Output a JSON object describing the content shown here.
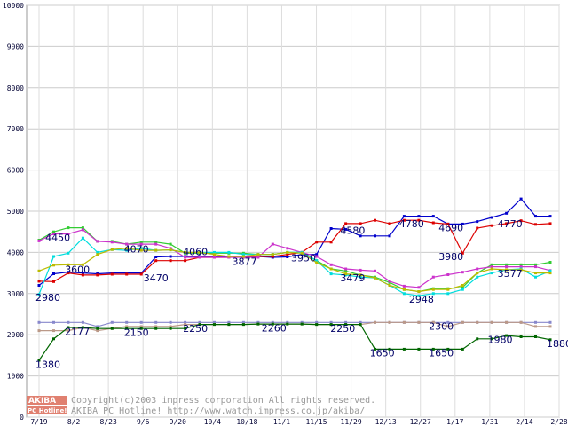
{
  "chart_data": {
    "type": "line",
    "title": "",
    "xlabel": "",
    "ylabel": "",
    "ylim": [
      0,
      10000
    ],
    "yticks": [
      0,
      1000,
      2000,
      3000,
      4000,
      5000,
      6000,
      7000,
      8000,
      9000,
      10000
    ],
    "xticks": [
      "7/19",
      "8/2",
      "8/23",
      "9/6",
      "9/20",
      "10/4",
      "10/18",
      "11/1",
      "11/15",
      "11/29",
      "12/13",
      "12/27",
      "1/17",
      "1/31",
      "2/14",
      "2/28"
    ],
    "grid": true,
    "legend": "none",
    "n_points": 36,
    "series": [
      {
        "color": "#0000cc",
        "values": [
          3200,
          3480,
          3520,
          3500,
          3480,
          3500,
          3500,
          3500,
          3890,
          3900,
          3900,
          3900,
          3900,
          3900,
          3900,
          3900,
          3880,
          3890,
          3950,
          3950,
          4580,
          4560,
          4400,
          4400,
          4400,
          4880,
          4880,
          4880,
          4690,
          4690,
          4750,
          4850,
          4950,
          5300,
          4880,
          4880
        ]
      },
      {
        "color": "#dd0000",
        "values": [
          3300,
          3290,
          3500,
          3450,
          3450,
          3470,
          3470,
          3470,
          3800,
          3800,
          3800,
          3880,
          3880,
          3880,
          3900,
          3900,
          3900,
          3950,
          4000,
          4250,
          4250,
          4700,
          4700,
          4780,
          4700,
          4780,
          4780,
          4720,
          4690,
          3980,
          4590,
          4650,
          4700,
          4770,
          4680,
          4700
        ]
      },
      {
        "color": "#33cc33",
        "values": [
          4300,
          4500,
          4600,
          4600,
          4270,
          4270,
          4200,
          4250,
          4250,
          4200,
          3980,
          3980,
          3980,
          3980,
          3980,
          3950,
          3950,
          4000,
          4000,
          3800,
          3600,
          3550,
          3450,
          3400,
          3270,
          3100,
          3050,
          3120,
          3120,
          3150,
          3500,
          3700,
          3700,
          3700,
          3700,
          3760
        ]
      },
      {
        "color": "#cc33cc",
        "values": [
          4280,
          4450,
          4450,
          4550,
          4270,
          4250,
          4200,
          4200,
          4200,
          4100,
          3880,
          3880,
          3880,
          3880,
          3880,
          3880,
          4200,
          4100,
          4000,
          3900,
          3700,
          3600,
          3570,
          3550,
          3300,
          3180,
          3150,
          3400,
          3460,
          3520,
          3600,
          3650,
          3650,
          3650,
          3650,
          3560
        ]
      },
      {
        "color": "#00dddd",
        "values": [
          2980,
          3900,
          3980,
          4350,
          4000,
          4070,
          4050,
          4100,
          4050,
          4060,
          4000,
          4000,
          4000,
          4000,
          3950,
          3950,
          3950,
          4000,
          4000,
          3800,
          3479,
          3450,
          3400,
          3380,
          3200,
          3000,
          2948,
          3000,
          3000,
          3100,
          3400,
          3500,
          3577,
          3600,
          3400,
          3550
        ]
      },
      {
        "color": "#bbbb00",
        "values": [
          3550,
          3690,
          3700,
          3700,
          3950,
          4070,
          4100,
          4050,
          4050,
          4060,
          4000,
          4000,
          3950,
          3900,
          3900,
          3950,
          3950,
          4000,
          3980,
          3750,
          3600,
          3479,
          3450,
          3380,
          3200,
          3100,
          3050,
          3100,
          3100,
          3200,
          3500,
          3600,
          3577,
          3577,
          3500,
          3500
        ]
      },
      {
        "color": "#8888cc",
        "values": [
          2300,
          2300,
          2300,
          2300,
          2200,
          2300,
          2300,
          2300,
          2300,
          2300,
          2300,
          2300,
          2300,
          2300,
          2300,
          2300,
          2300,
          2300,
          2300,
          2300,
          2300,
          2300,
          2300,
          2300,
          2300,
          2300,
          2300,
          2300,
          2300,
          2300,
          2300,
          2300,
          2300,
          2300,
          2300,
          2300
        ]
      },
      {
        "color": "#bb9988",
        "values": [
          2100,
          2100,
          2100,
          2177,
          2100,
          2150,
          2200,
          2200,
          2200,
          2200,
          2250,
          2250,
          2250,
          2250,
          2250,
          2260,
          2260,
          2260,
          2260,
          2250,
          2250,
          2250,
          2250,
          2300,
          2300,
          2300,
          2300,
          2300,
          2200,
          2300,
          2300,
          2300,
          2300,
          2300,
          2200,
          2200
        ]
      },
      {
        "color": "#006600",
        "values": [
          1380,
          1900,
          2177,
          2177,
          2150,
          2150,
          2150,
          2150,
          2150,
          2150,
          2150,
          2250,
          2250,
          2250,
          2250,
          2260,
          2260,
          2260,
          2260,
          2250,
          2250,
          2250,
          2250,
          1650,
          1650,
          1650,
          1650,
          1650,
          1650,
          1650,
          1900,
          1900,
          1980,
          1950,
          1950,
          1880
        ]
      }
    ],
    "annotations": [
      {
        "text": "4450",
        "x": 1,
        "y": 4280
      },
      {
        "text": "3600",
        "x": 3,
        "y": 3500
      },
      {
        "text": "4070",
        "x": 9,
        "y": 4000
      },
      {
        "text": "3470",
        "x": 11,
        "y": 3300
      },
      {
        "text": "4060",
        "x": 15,
        "y": 3930
      },
      {
        "text": "3877",
        "x": 20,
        "y": 3700
      },
      {
        "text": "3950",
        "x": 26,
        "y": 3780
      },
      {
        "text": "4580",
        "x": 31,
        "y": 4450
      },
      {
        "text": "4780",
        "x": 37,
        "y": 4610
      },
      {
        "text": "4690",
        "x": 41,
        "y": 4520
      },
      {
        "text": "4770",
        "x": 47,
        "y": 4610
      },
      {
        "text": "2980",
        "x": 0,
        "y": 2820
      },
      {
        "text": "3479",
        "x": 31,
        "y": 3300
      },
      {
        "text": "3980",
        "x": 41,
        "y": 3820
      },
      {
        "text": "2948",
        "x": 38,
        "y": 2780
      },
      {
        "text": "3577",
        "x": 47,
        "y": 3410
      },
      {
        "text": "2177",
        "x": 3,
        "y": 1990
      },
      {
        "text": "2150",
        "x": 9,
        "y": 1970
      },
      {
        "text": "2250",
        "x": 15,
        "y": 2070
      },
      {
        "text": "2260",
        "x": 23,
        "y": 2080
      },
      {
        "text": "2250",
        "x": 30,
        "y": 2070
      },
      {
        "text": "2300",
        "x": 40,
        "y": 2120
      },
      {
        "text": "1380",
        "x": 0,
        "y": 1200
      },
      {
        "text": "1650",
        "x": 34,
        "y": 1480
      },
      {
        "text": "1650",
        "x": 40,
        "y": 1480
      },
      {
        "text": "1980",
        "x": 46,
        "y": 1800
      },
      {
        "text": "1880",
        "x": 52,
        "y": 1700
      }
    ]
  },
  "copyright_line1": "Copyright(c)2003 impress corporation All rights reserved.",
  "copyright_line2": "AKIBA PC Hotline!  http://www.watch.impress.co.jp/akiba/",
  "logo_top": "AKIBA",
  "logo_bottom": "PC Hotline!"
}
